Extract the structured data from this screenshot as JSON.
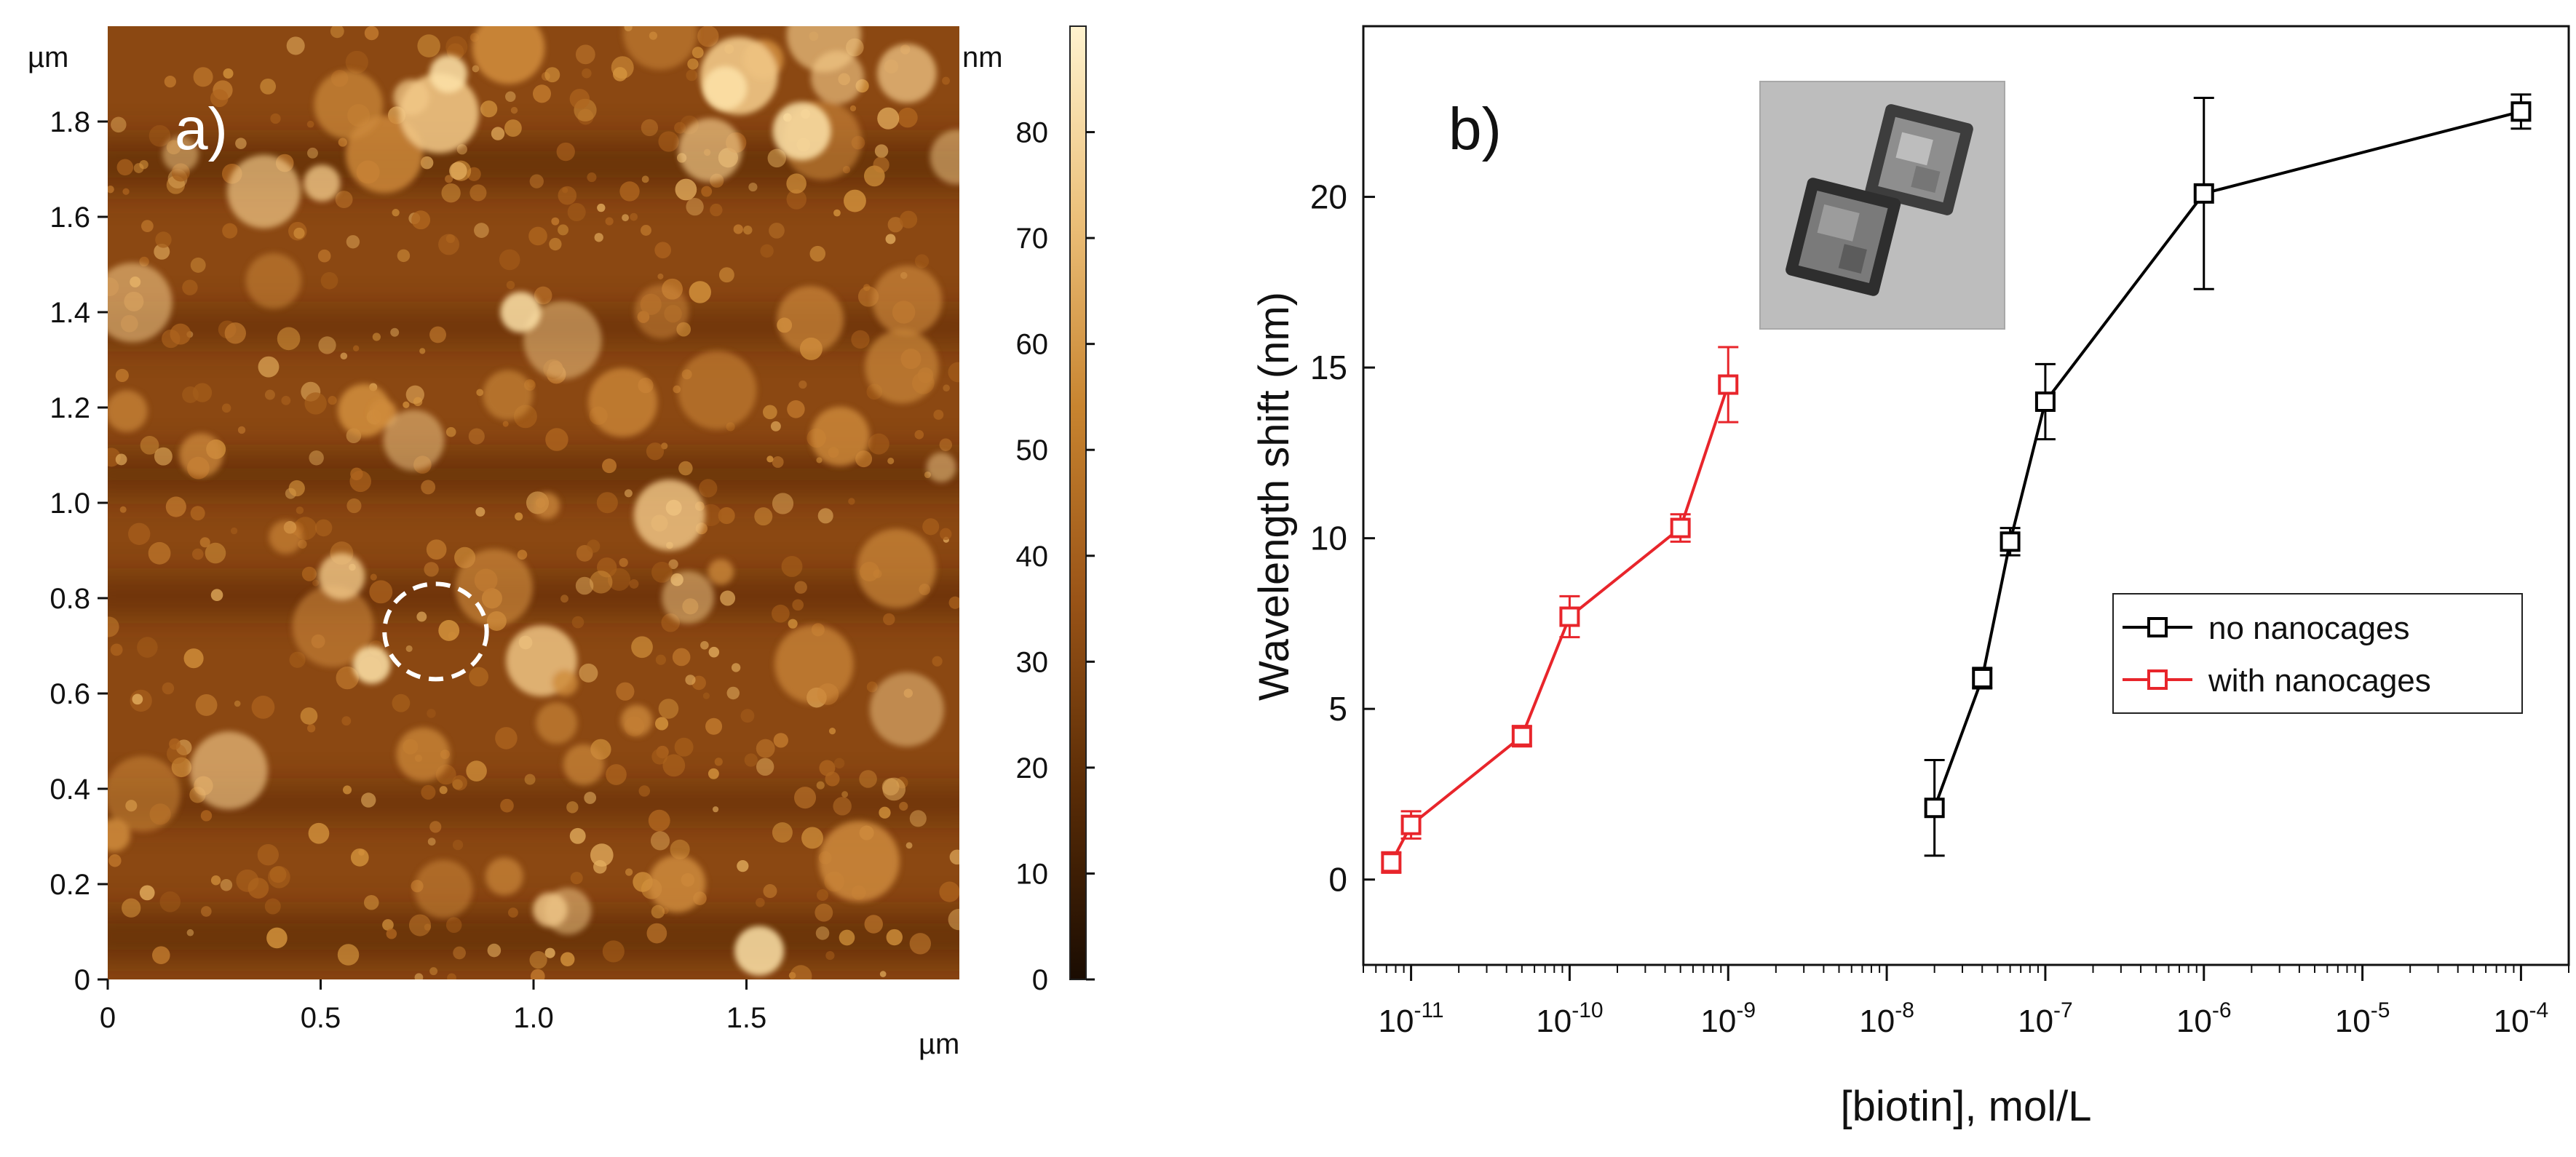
{
  "chart_data": [
    {
      "type": "heatmap",
      "panel_label": "a)",
      "title": "",
      "x_unit_label": "µm",
      "y_unit_label": "µm",
      "x_ticks": [
        "0",
        "0.5",
        "1.0",
        "1.5"
      ],
      "x_tick_values": [
        0,
        0.5,
        1.0,
        1.5
      ],
      "y_ticks": [
        "0",
        "0.2",
        "0.4",
        "0.6",
        "0.8",
        "1.0",
        "1.2",
        "1.4",
        "1.6",
        "1.8"
      ],
      "y_tick_values": [
        0,
        0.2,
        0.4,
        0.6,
        0.8,
        1.0,
        1.2,
        1.4,
        1.6,
        1.8
      ],
      "xlim": [
        0,
        2.0
      ],
      "ylim": [
        0,
        2.0
      ],
      "colorbar": {
        "unit_label": "nm",
        "ticks": [
          "0",
          "10",
          "20",
          "30",
          "40",
          "50",
          "60",
          "70",
          "80"
        ],
        "tick_values": [
          0,
          10,
          20,
          30,
          40,
          50,
          60,
          70,
          80
        ],
        "range": [
          0,
          90
        ],
        "colors": [
          "#1a0c02",
          "#5a2c06",
          "#9a5417",
          "#c8842f",
          "#ecc07a",
          "#fff3cf"
        ]
      },
      "annotation": {
        "shape": "dashed-ellipse",
        "center_um": [
          0.77,
          0.73
        ],
        "radius_um": [
          0.12,
          0.1
        ]
      }
    },
    {
      "type": "line",
      "panel_label": "b)",
      "title": "",
      "xlabel": "[biotin], mol/L",
      "ylabel": "Wavelength shift (nm)",
      "x_scale": "log",
      "xlim": [
        5e-12,
        0.0002
      ],
      "ylim": [
        -2.5,
        25
      ],
      "x_ticks": [
        {
          "base": "10",
          "exp": "-11",
          "value": 1e-11
        },
        {
          "base": "10",
          "exp": "-10",
          "value": 1e-10
        },
        {
          "base": "10",
          "exp": "-9",
          "value": 1e-09
        },
        {
          "base": "10",
          "exp": "-8",
          "value": 1e-08
        },
        {
          "base": "10",
          "exp": "-7",
          "value": 1e-07
        },
        {
          "base": "10",
          "exp": "-6",
          "value": 1e-06
        },
        {
          "base": "10",
          "exp": "-5",
          "value": 1e-05
        },
        {
          "base": "10",
          "exp": "-4",
          "value": 0.0001
        }
      ],
      "y_ticks": [
        {
          "label": "0",
          "value": 0
        },
        {
          "label": "5",
          "value": 5
        },
        {
          "label": "10",
          "value": 10
        },
        {
          "label": "15",
          "value": 15
        },
        {
          "label": "20",
          "value": 20
        }
      ],
      "legend_position": "right-middle",
      "series": [
        {
          "name": "no nanocages",
          "color": "#000000",
          "marker": "open-square",
          "x": [
            2e-08,
            4e-08,
            6e-08,
            1e-07,
            1e-06,
            0.0001
          ],
          "y": [
            2.1,
            5.9,
            9.9,
            14.0,
            20.1,
            22.5
          ],
          "err": [
            1.4,
            0.3,
            0.4,
            1.1,
            2.8,
            0.5
          ]
        },
        {
          "name": "with nanocages",
          "color": "#e8252b",
          "marker": "open-square",
          "x": [
            7.5e-12,
            1e-11,
            5e-11,
            1e-10,
            5e-10,
            1e-09
          ],
          "y": [
            0.5,
            1.6,
            4.2,
            7.7,
            10.3,
            14.5
          ],
          "err": [
            0.3,
            0.4,
            0.3,
            0.6,
            0.4,
            1.1
          ]
        }
      ],
      "inset": {
        "kind": "electron-micrograph",
        "subject": "two cubic nanocages"
      }
    }
  ]
}
